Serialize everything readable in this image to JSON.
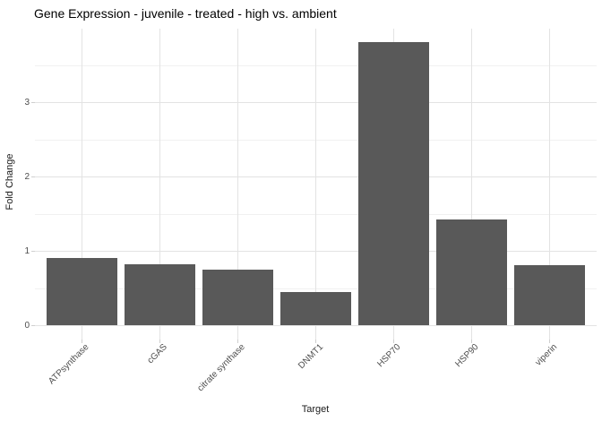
{
  "chart_data": {
    "type": "bar",
    "title": "Gene Expression - juvenile - treated - high vs. ambient",
    "xlabel": "Target",
    "ylabel": "Fold Change",
    "categories": [
      "ATPsynthase",
      "cGAS",
      "citrate synthase",
      "DNMT1",
      "HSP70",
      "HSP90",
      "viperin"
    ],
    "values": [
      0.9,
      0.82,
      0.75,
      0.44,
      3.81,
      1.42,
      0.81
    ],
    "ytick_labels": [
      "0",
      "1",
      "2",
      "3"
    ],
    "yticks": [
      0,
      1,
      2,
      3
    ],
    "minor_gridlines": [
      0.5,
      1.5,
      2.5,
      3.5
    ],
    "ylim": [
      -0.19,
      3.99
    ],
    "grid": true,
    "legend_position": "none",
    "colors": {
      "bar": "#595959",
      "grid_major": "#e3e3e3",
      "grid_minor": "#f1f1f1",
      "tick_mark": "#cfcfcf",
      "tick_label": "#4d4d4d",
      "axis_title": "#1a1a1a",
      "title": "#000000",
      "background": "#ffffff"
    }
  }
}
